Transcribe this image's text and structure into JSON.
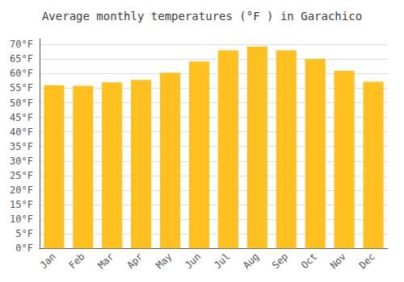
{
  "chart_data": {
    "type": "bar",
    "title": "Average monthly temperatures (°F ) in Garachico",
    "categories": [
      "Jan",
      "Feb",
      "Mar",
      "Apr",
      "May",
      "Jun",
      "Jul",
      "Aug",
      "Sep",
      "Oct",
      "Nov",
      "Dec"
    ],
    "values": [
      56.0,
      55.8,
      57.0,
      57.8,
      60.3,
      64.2,
      68.0,
      69.3,
      68.0,
      65.1,
      61.0,
      57.2
    ],
    "color": "#FFC020",
    "ylim": [
      0,
      72
    ],
    "yticks": [
      {
        "value": 0,
        "label": "0°F"
      },
      {
        "value": 5,
        "label": "5°F"
      },
      {
        "value": 10,
        "label": "10°F"
      },
      {
        "value": 15,
        "label": "15°F"
      },
      {
        "value": 20,
        "label": "20°F"
      },
      {
        "value": 25,
        "label": "25°F"
      },
      {
        "value": 30,
        "label": "30°F"
      },
      {
        "value": 35,
        "label": "35°F"
      },
      {
        "value": 40,
        "label": "40°F"
      },
      {
        "value": 45,
        "label": "45°F"
      },
      {
        "value": 50,
        "label": "50°F"
      },
      {
        "value": 55,
        "label": "55°F"
      },
      {
        "value": 60,
        "label": "60°F"
      },
      {
        "value": 65,
        "label": "65°F"
      },
      {
        "value": 70,
        "label": "70°F"
      }
    ],
    "grid": true
  }
}
